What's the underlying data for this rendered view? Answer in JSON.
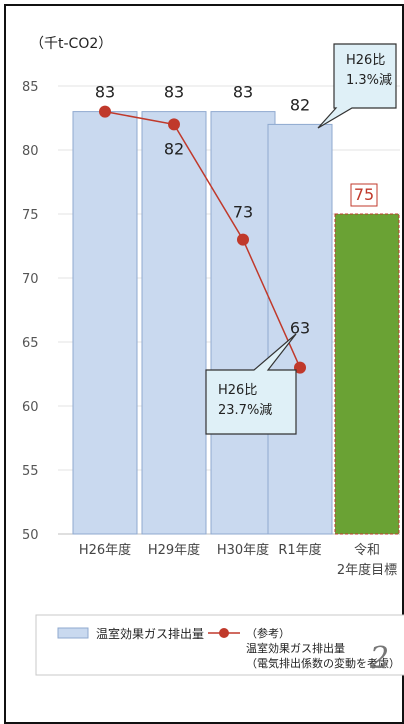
{
  "chart_data": {
    "type": "bar",
    "unit_label": "（千t-CO2）",
    "ylim": [
      50,
      85
    ],
    "yticks": [
      50,
      55,
      60,
      65,
      70,
      75,
      80,
      85
    ],
    "categories": [
      "H26年度",
      "H29年度",
      "H30年度",
      "R1年度",
      "令和2年度目標"
    ],
    "category_lines": [
      [
        "H26年度"
      ],
      [
        "H29年度"
      ],
      [
        "H30年度"
      ],
      [
        "R1年度"
      ],
      [
        "令和",
        "2年度目標"
      ]
    ],
    "bar_series": {
      "name": "温室効果ガス排出量",
      "values": [
        83,
        83,
        83,
        82,
        75
      ],
      "labels": [
        "83",
        "83",
        "83",
        "82",
        "75"
      ],
      "colors": [
        "#c9d9ef",
        "#c9d9ef",
        "#c9d9ef",
        "#c9d9ef",
        "#6aa234"
      ]
    },
    "line_series": {
      "name": "（参考）温室効果ガス排出量（電気排出係数の変動を考慮）",
      "values": [
        83,
        82,
        73,
        63
      ],
      "labels": [
        "",
        "82",
        "73",
        "63"
      ],
      "color": "#c0392b"
    },
    "callouts": [
      {
        "lines": [
          "H26比",
          "1.3%減"
        ]
      },
      {
        "lines": [
          "H26比",
          "23.7%減"
        ]
      }
    ],
    "legend": {
      "bar_label": "温室効果ガス排出量",
      "line_lines": [
        "（参考）",
        "温室効果ガス排出量",
        "（電気排出係数の変動を考慮）"
      ]
    },
    "page_number": "2"
  }
}
